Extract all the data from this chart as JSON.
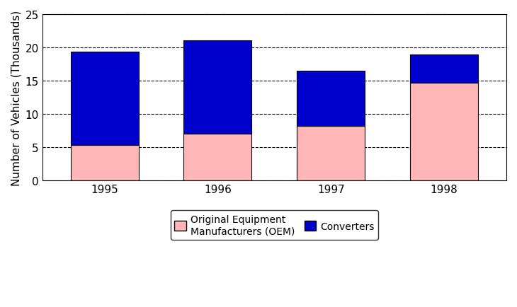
{
  "years": [
    "1995",
    "1996",
    "1997",
    "1998"
  ],
  "oem_values": [
    5.3,
    7.0,
    8.2,
    14.7
  ],
  "converters_values": [
    14.1,
    14.1,
    8.3,
    4.2
  ],
  "oem_color": "#FFB6B6",
  "converters_color": "#0000CC",
  "ylabel": "Number of Vehicles (Thousands)",
  "ylim": [
    0,
    25
  ],
  "yticks": [
    0,
    5,
    10,
    15,
    20,
    25
  ],
  "bar_width": 0.6,
  "legend_oem": "Original Equipment\nManufacturers (OEM)",
  "legend_converters": "Converters",
  "background_color": "#ffffff",
  "edge_color": "#000000",
  "tick_fontsize": 11,
  "ylabel_fontsize": 11,
  "legend_fontsize": 10
}
